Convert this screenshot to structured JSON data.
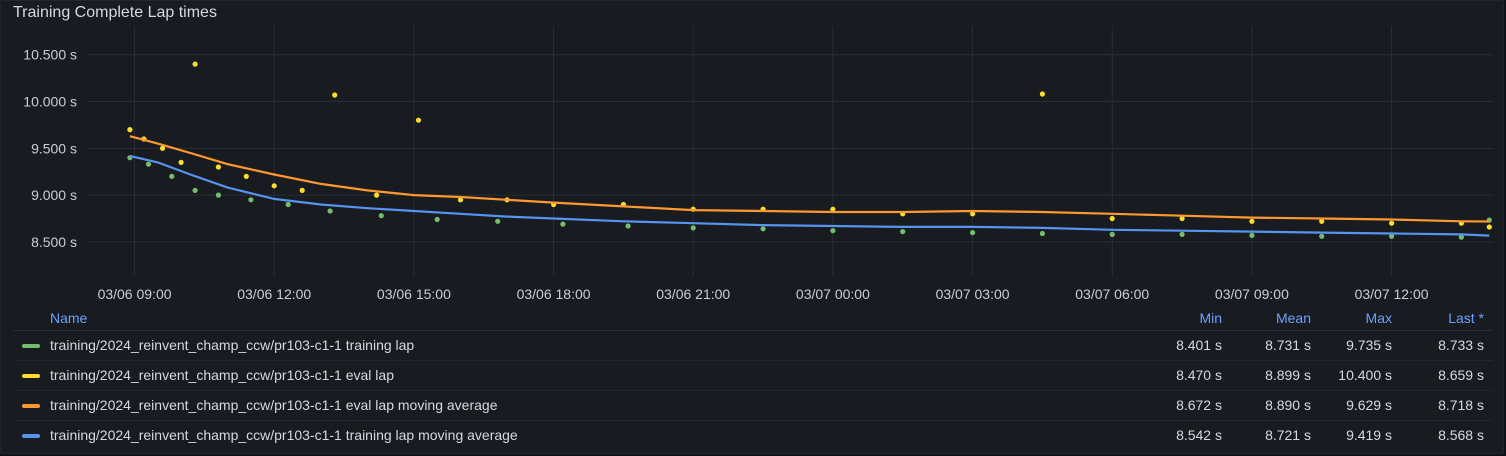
{
  "panel": {
    "title": "Training Complete Lap times"
  },
  "legend": {
    "headers": {
      "name": "Name",
      "min": "Min",
      "mean": "Mean",
      "max": "Max",
      "last": "Last *"
    },
    "rows": [
      {
        "name": "training/2024_reinvent_champ_ccw/pr103-c1-1 training lap",
        "color": "#73bf69",
        "min": "8.401 s",
        "mean": "8.731 s",
        "max": "9.735 s",
        "last": "8.733 s"
      },
      {
        "name": "training/2024_reinvent_champ_ccw/pr103-c1-1 eval lap",
        "color": "#fade2a",
        "min": "8.470 s",
        "mean": "8.899 s",
        "max": "10.400 s",
        "last": "8.659 s"
      },
      {
        "name": "training/2024_reinvent_champ_ccw/pr103-c1-1 eval lap moving average",
        "color": "#ff9830",
        "min": "8.672 s",
        "mean": "8.890 s",
        "max": "9.629 s",
        "last": "8.718 s"
      },
      {
        "name": "training/2024_reinvent_champ_ccw/pr103-c1-1 training lap moving average",
        "color": "#5794f2",
        "min": "8.542 s",
        "mean": "8.721 s",
        "max": "9.419 s",
        "last": "8.568 s"
      }
    ]
  },
  "chart_data": {
    "type": "scatter",
    "xlim": [
      "03/06 08:00",
      "03/07 14:10"
    ],
    "ylim": [
      8.2,
      10.7
    ],
    "grid": true,
    "legend_position": "bottom",
    "y_ticks": [
      "10.500 s",
      "10.000 s",
      "9.500 s",
      "9.000 s",
      "8.500 s"
    ],
    "y_tick_values": [
      10.5,
      10.0,
      9.5,
      9.0,
      8.5
    ],
    "x_ticks": [
      "03/06 09:00",
      "03/06 12:00",
      "03/06 15:00",
      "03/06 18:00",
      "03/06 21:00",
      "03/07 00:00",
      "03/07 03:00",
      "03/07 06:00",
      "03/07 09:00",
      "03/07 12:00"
    ],
    "x_tick_hours": [
      9,
      12,
      15,
      18,
      21,
      24,
      27,
      30,
      33,
      36
    ],
    "series": [
      {
        "name": "training/2024_reinvent_champ_ccw/pr103-c1-1 training lap",
        "style": "points",
        "color": "#73bf69",
        "hours": [
          8.9,
          9.3,
          9.8,
          10.3,
          10.8,
          11.5,
          12.3,
          13.2,
          14.3,
          15.5,
          16.8,
          18.2,
          19.6,
          21.0,
          22.5,
          24.0,
          25.5,
          27.0,
          28.5,
          30.0,
          31.5,
          33.0,
          34.5,
          36.0,
          37.5,
          38.1
        ],
        "values": [
          9.4,
          9.33,
          9.2,
          9.05,
          9.0,
          8.95,
          8.9,
          8.83,
          8.78,
          8.74,
          8.72,
          8.69,
          8.67,
          8.65,
          8.64,
          8.62,
          8.61,
          8.6,
          8.59,
          8.58,
          8.58,
          8.57,
          8.56,
          8.56,
          8.55,
          8.733
        ]
      },
      {
        "name": "training/2024_reinvent_champ_ccw/pr103-c1-1 eval lap",
        "style": "points",
        "color": "#fade2a",
        "hours": [
          8.9,
          9.2,
          9.6,
          10.0,
          10.3,
          10.8,
          11.4,
          12.0,
          12.6,
          13.3,
          14.2,
          15.1,
          16.0,
          17.0,
          18.0,
          19.5,
          21.0,
          22.5,
          24.0,
          25.5,
          27.0,
          28.5,
          30.0,
          31.5,
          33.0,
          34.5,
          36.0,
          37.5,
          38.1
        ],
        "values": [
          9.7,
          9.6,
          9.5,
          9.35,
          10.4,
          9.3,
          9.2,
          9.1,
          9.05,
          10.07,
          9.0,
          9.8,
          8.95,
          8.95,
          8.9,
          8.9,
          8.85,
          8.85,
          8.85,
          8.8,
          8.8,
          10.08,
          8.75,
          8.75,
          8.72,
          8.72,
          8.7,
          8.7,
          8.659
        ]
      },
      {
        "name": "training/2024_reinvent_champ_ccw/pr103-c1-1 eval lap moving average",
        "style": "line",
        "color": "#ff9830",
        "hours": [
          8.9,
          9.5,
          10.2,
          11.0,
          12.0,
          13.0,
          14.0,
          15.0,
          16.0,
          17.0,
          18.0,
          19.5,
          21.0,
          22.5,
          24.0,
          25.5,
          27.0,
          28.5,
          30.0,
          31.5,
          33.0,
          34.5,
          36.0,
          37.5,
          38.1
        ],
        "values": [
          9.629,
          9.55,
          9.45,
          9.33,
          9.22,
          9.12,
          9.05,
          9.0,
          8.98,
          8.95,
          8.92,
          8.88,
          8.84,
          8.83,
          8.82,
          8.82,
          8.83,
          8.82,
          8.8,
          8.78,
          8.76,
          8.75,
          8.74,
          8.72,
          8.718
        ]
      },
      {
        "name": "training/2024_reinvent_champ_ccw/pr103-c1-1 training lap moving average",
        "style": "line",
        "color": "#5794f2",
        "hours": [
          8.9,
          9.5,
          10.2,
          11.0,
          12.0,
          13.0,
          14.0,
          15.0,
          16.0,
          17.0,
          18.0,
          19.5,
          21.0,
          22.5,
          24.0,
          25.5,
          27.0,
          28.5,
          30.0,
          31.5,
          33.0,
          34.5,
          36.0,
          37.5,
          38.1
        ],
        "values": [
          9.419,
          9.35,
          9.22,
          9.08,
          8.96,
          8.9,
          8.86,
          8.83,
          8.8,
          8.77,
          8.75,
          8.72,
          8.7,
          8.68,
          8.67,
          8.66,
          8.66,
          8.65,
          8.63,
          8.62,
          8.61,
          8.6,
          8.59,
          8.58,
          8.568
        ]
      }
    ]
  }
}
